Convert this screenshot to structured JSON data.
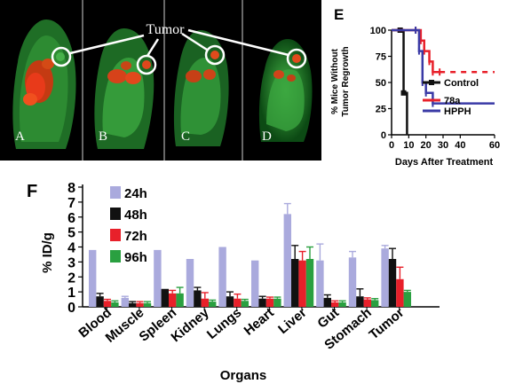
{
  "imaging": {
    "tumor_label": "Tumor",
    "panels": [
      {
        "letter": "A"
      },
      {
        "letter": "B"
      },
      {
        "letter": "C"
      },
      {
        "letter": "D"
      }
    ]
  },
  "chart_data": [
    {
      "panel": "E",
      "type": "line",
      "step": true,
      "xlabel": "Days After Treatment",
      "ylabel": "% Mice Without\nTumor Regrowth",
      "xlim": [
        0,
        60
      ],
      "ylim": [
        0,
        100
      ],
      "xticks": [
        0,
        10,
        20,
        30,
        40,
        60
      ],
      "xtick_labels": [
        "0",
        "10",
        "20",
        "30",
        "40",
        "60"
      ],
      "yticks": [
        0,
        25,
        50,
        75,
        100
      ],
      "series": [
        {
          "name": "Control",
          "color": "#111111",
          "marker": "square",
          "x": [
            0,
            5,
            7,
            9
          ],
          "y": [
            100,
            100,
            40,
            0
          ]
        },
        {
          "name": "78a",
          "color": "#e8202a",
          "marker": "tick",
          "x": [
            0,
            14,
            17,
            19,
            22,
            24,
            28,
            60
          ],
          "y": [
            100,
            100,
            90,
            80,
            70,
            60,
            60,
            60
          ]
        },
        {
          "name": "HPPH",
          "color": "#3a3aa6",
          "marker": "tick",
          "x": [
            0,
            14,
            16,
            18,
            20,
            24,
            60
          ],
          "y": [
            100,
            100,
            80,
            50,
            40,
            30,
            30
          ]
        }
      ]
    },
    {
      "panel": "F",
      "type": "bar",
      "xlabel": "Organs",
      "ylabel": "% ID/g",
      "ylim": [
        0,
        8
      ],
      "yticks": [
        0,
        1,
        2,
        3,
        4,
        5,
        6,
        7,
        8
      ],
      "categories": [
        "Blood",
        "Muscle",
        "Spleen",
        "Kidney",
        "Lungs",
        "Heart",
        "Liver",
        "Gut",
        "Stomach",
        "Tumor"
      ],
      "series": [
        {
          "name": "24h",
          "color": "#aaaadd",
          "values": [
            3.8,
            0.6,
            3.8,
            3.2,
            4.0,
            3.1,
            6.2,
            3.1,
            3.3,
            3.9
          ],
          "errors": [
            0.0,
            0.1,
            0.0,
            0.0,
            0.0,
            0.0,
            0.7,
            1.1,
            0.4,
            0.2
          ]
        },
        {
          "name": "48h",
          "color": "#111111",
          "values": [
            0.7,
            0.25,
            1.2,
            1.1,
            0.7,
            0.55,
            3.2,
            0.6,
            0.7,
            3.2
          ],
          "errors": [
            0.2,
            0.1,
            0.0,
            0.2,
            0.3,
            0.15,
            0.9,
            0.2,
            0.5,
            0.7
          ]
        },
        {
          "name": "72h",
          "color": "#e8202a",
          "values": [
            0.4,
            0.25,
            0.9,
            0.55,
            0.55,
            0.55,
            3.1,
            0.3,
            0.5,
            1.85
          ],
          "errors": [
            0.1,
            0.1,
            0.2,
            0.4,
            0.3,
            0.1,
            0.6,
            0.1,
            0.1,
            0.8
          ]
        },
        {
          "name": "96h",
          "color": "#2aa040",
          "values": [
            0.3,
            0.25,
            0.9,
            0.35,
            0.4,
            0.55,
            3.2,
            0.3,
            0.45,
            1.0
          ],
          "errors": [
            0.1,
            0.1,
            0.4,
            0.1,
            0.1,
            0.1,
            0.8,
            0.1,
            0.1,
            0.1
          ]
        }
      ]
    }
  ]
}
